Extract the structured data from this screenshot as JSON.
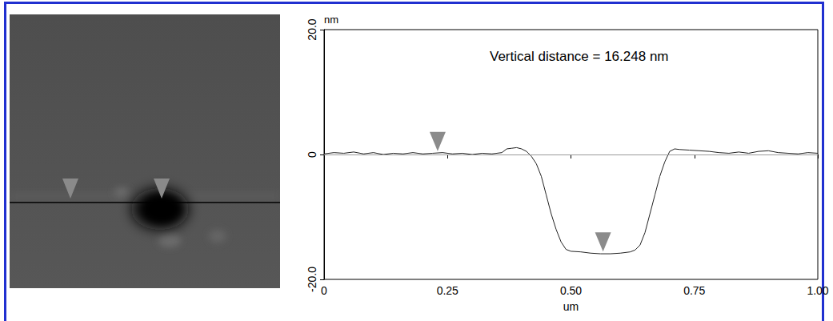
{
  "chart_data": {
    "type": "line",
    "annotation": "Vertical distance = 16.248 nm",
    "xlabel": "um",
    "ylabel": "nm",
    "x": [
      0,
      0.02,
      0.04,
      0.06,
      0.08,
      0.1,
      0.12,
      0.14,
      0.16,
      0.18,
      0.2,
      0.22,
      0.24,
      0.26,
      0.28,
      0.3,
      0.32,
      0.34,
      0.36,
      0.37,
      0.38,
      0.39,
      0.4,
      0.41,
      0.42,
      0.43,
      0.44,
      0.45,
      0.46,
      0.47,
      0.48,
      0.49,
      0.5,
      0.52,
      0.54,
      0.56,
      0.58,
      0.6,
      0.62,
      0.63,
      0.64,
      0.65,
      0.66,
      0.67,
      0.68,
      0.69,
      0.7,
      0.71,
      0.72,
      0.74,
      0.76,
      0.78,
      0.8,
      0.82,
      0.84,
      0.86,
      0.88,
      0.9,
      0.92,
      0.94,
      0.96,
      0.98,
      1.0
    ],
    "values": [
      0.1,
      0.3,
      0.2,
      0.4,
      0.1,
      0.3,
      0.0,
      0.2,
      0.1,
      0.3,
      0.1,
      0.2,
      0.3,
      0.1,
      0.2,
      0.0,
      0.2,
      0.1,
      0.3,
      0.9,
      1.0,
      1.1,
      0.9,
      0.5,
      -0.3,
      -1.5,
      -3.5,
      -6.5,
      -9.5,
      -12,
      -14,
      -15.2,
      -15.5,
      -15.6,
      -15.8,
      -15.9,
      -15.9,
      -15.8,
      -15.6,
      -15.3,
      -14.5,
      -12.5,
      -9.5,
      -6.5,
      -3.5,
      -1.2,
      0.5,
      0.9,
      0.8,
      0.7,
      0.6,
      0.5,
      0.3,
      0.2,
      0.4,
      0.2,
      0.5,
      0.6,
      0.3,
      0.2,
      0.1,
      0.3,
      0.2
    ],
    "color": "#222222",
    "baseline": 0,
    "markers": {
      "x": [
        0.23,
        0.565
      ],
      "y": [
        0.3,
        -15.8
      ],
      "color": "#6e6e6e"
    },
    "xlim": [
      0,
      1
    ],
    "xticks": [
      0,
      0.25,
      {
        "value": 0.5,
        "label": "0.50"
      },
      0.75,
      {
        "value": 1,
        "label": "1.00"
      }
    ],
    "ylim": [
      -20,
      20
    ],
    "yticks": [
      {
        "value": -20,
        "label": "-20.0"
      },
      0,
      {
        "value": 20,
        "label": "20.0"
      }
    ],
    "grid": false
  }
}
